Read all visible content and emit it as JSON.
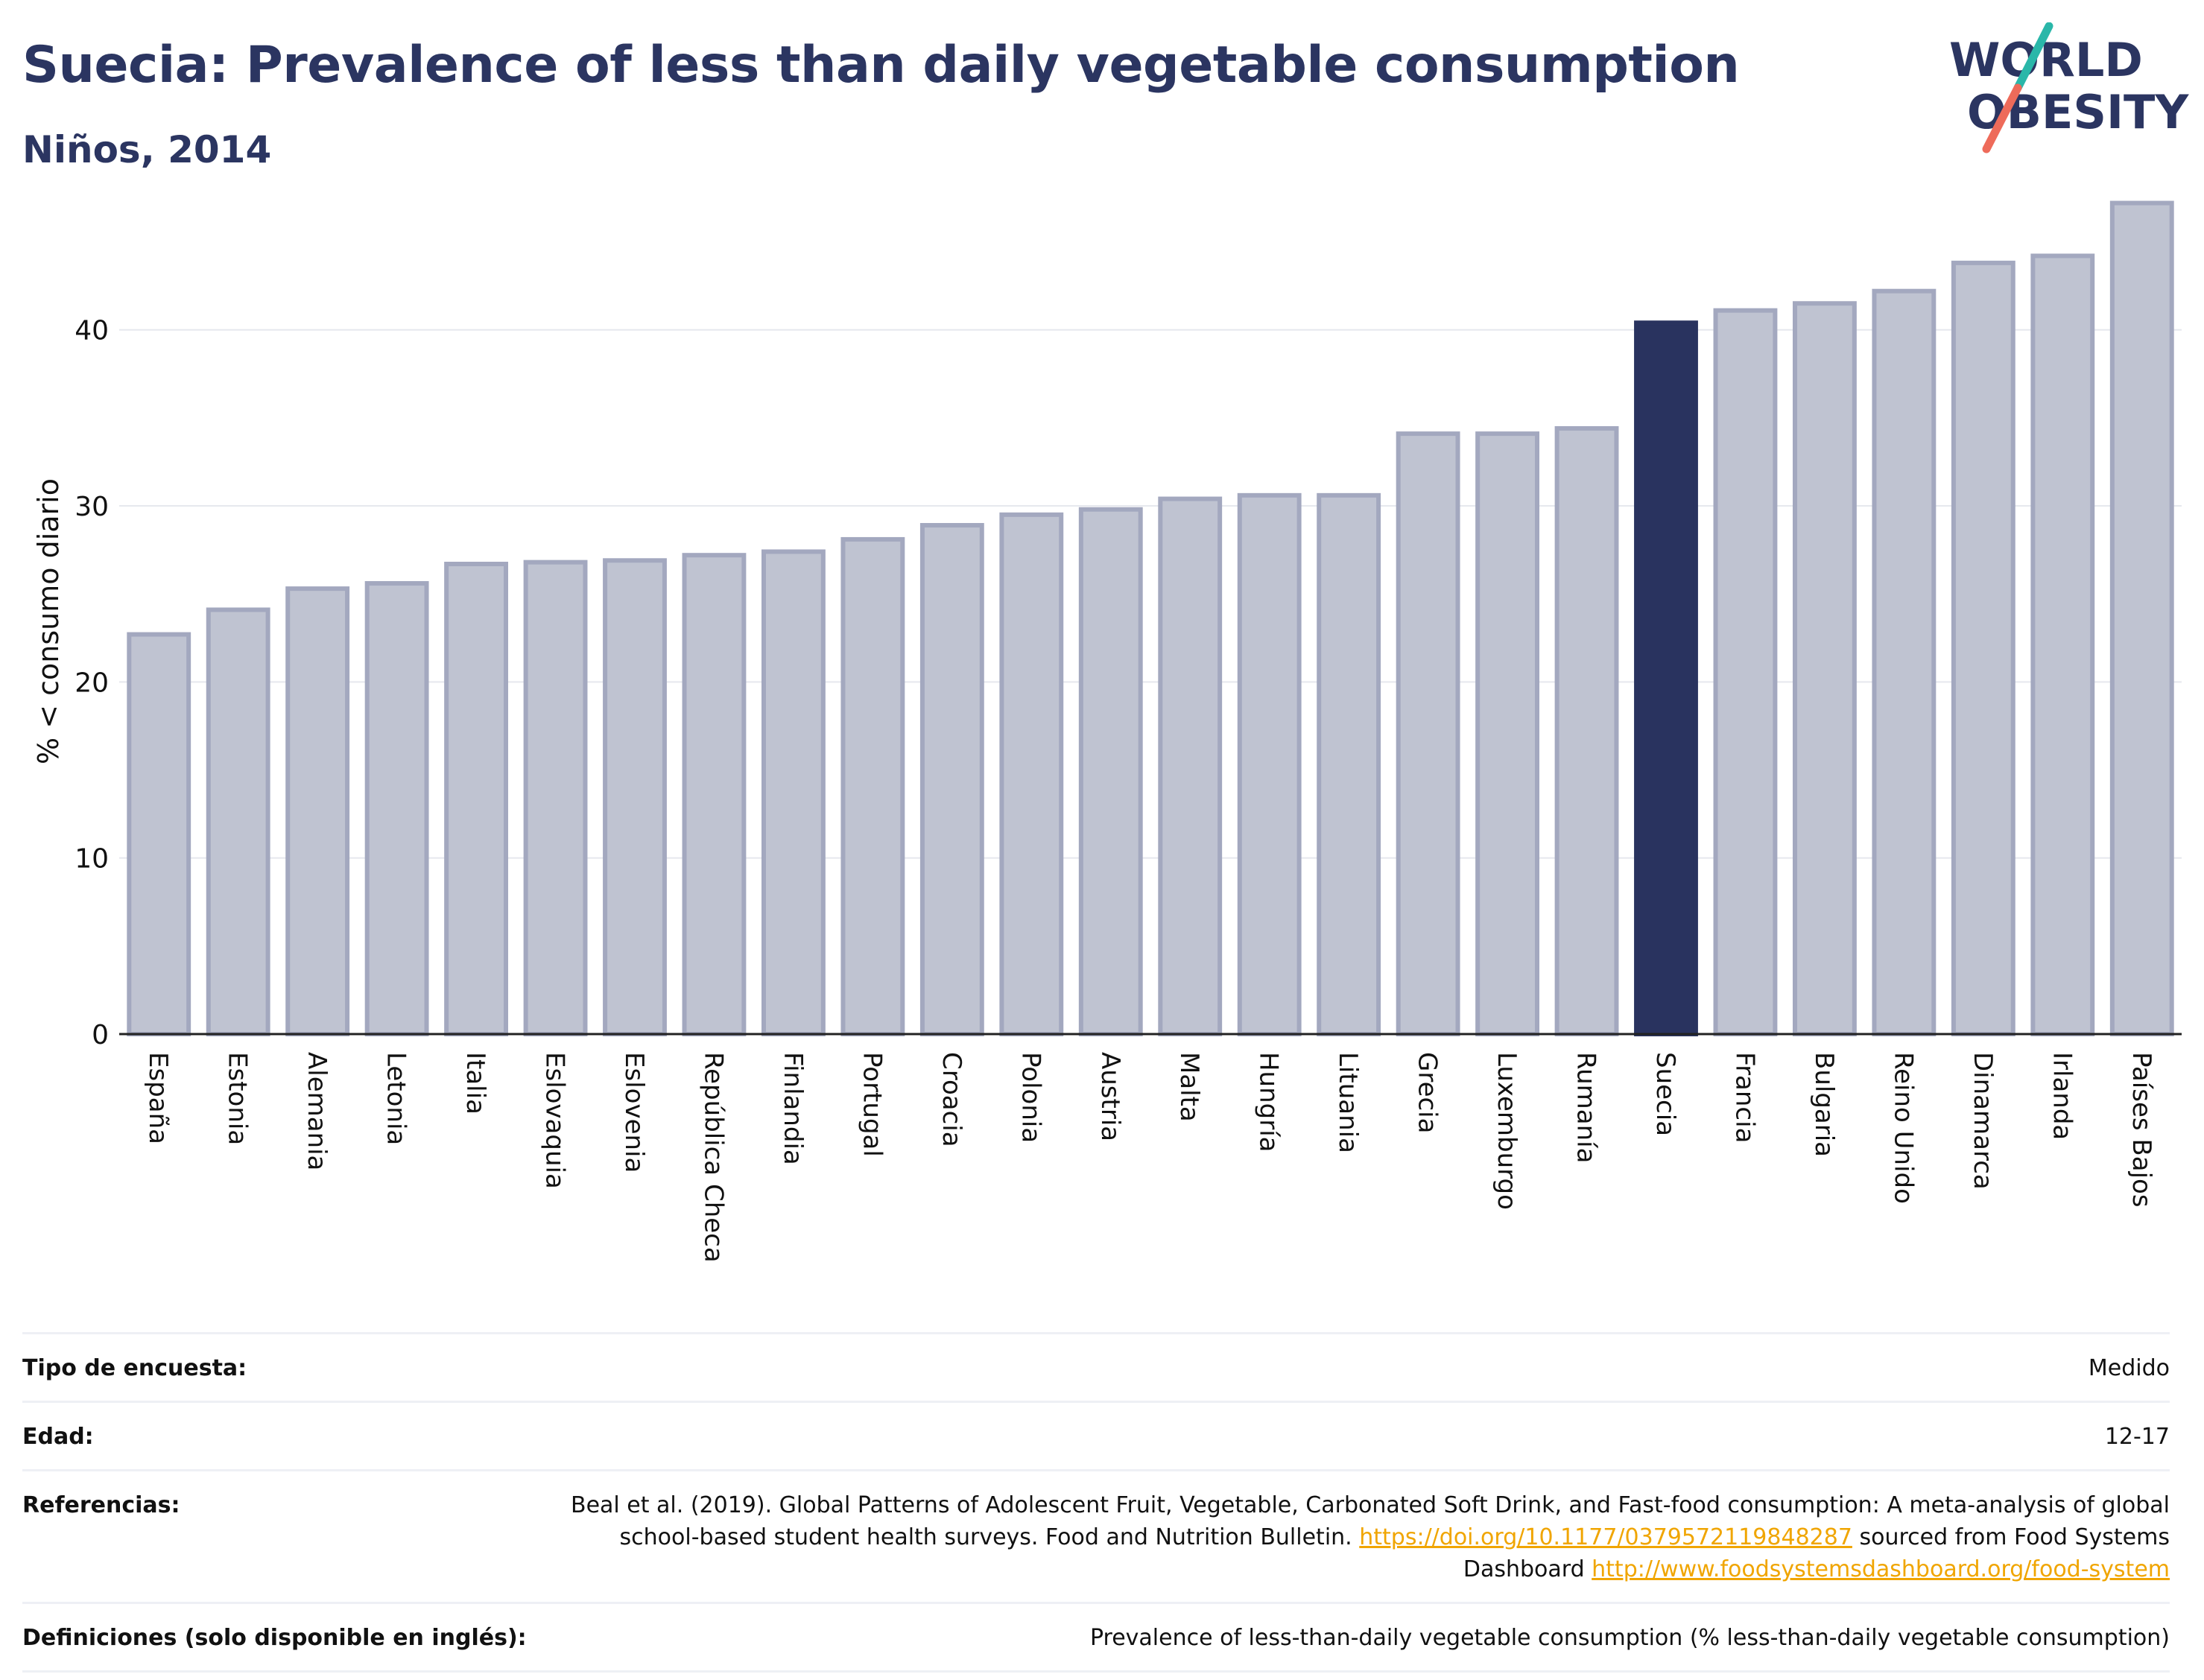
{
  "header": {
    "title": "Suecia: Prevalence of less than daily vegetable consumption",
    "subtitle": "Niños, 2014"
  },
  "logo": {
    "line1": "WORLD",
    "line2": "OBESITY"
  },
  "chart_data": {
    "type": "bar",
    "categories": [
      "España",
      "Estonia",
      "Alemania",
      "Letonia",
      "Italia",
      "Eslovaquia",
      "Eslovenia",
      "República Checa",
      "Finlandia",
      "Portugal",
      "Croacia",
      "Polonia",
      "Austria",
      "Malta",
      "Hungría",
      "Lituania",
      "Grecia",
      "Luxemburgo",
      "Rumanía",
      "Suecia",
      "Francia",
      "Bulgaria",
      "Reino Unido",
      "Dinamarca",
      "Irlanda",
      "Países Bajos"
    ],
    "values": [
      22.7,
      24.1,
      25.3,
      25.6,
      26.7,
      26.8,
      26.9,
      27.2,
      27.4,
      28.1,
      28.9,
      29.5,
      29.8,
      30.4,
      30.6,
      30.6,
      34.1,
      34.1,
      34.4,
      40.4,
      41.1,
      41.5,
      42.2,
      43.8,
      44.2,
      47.2
    ],
    "highlight": "Suecia",
    "ylabel": "% < consumo diario",
    "xlabel": "",
    "ylim": [
      0,
      49
    ],
    "yticks": [
      0,
      10,
      20,
      30,
      40
    ],
    "grid": true,
    "colors": {
      "bar": "#bfc3d1",
      "bar_border": "#a3a8bf",
      "highlight": "#29335f",
      "grid": "#e6e8ee",
      "axis": "#222222"
    }
  },
  "meta": [
    {
      "key": "Tipo de encuesta:",
      "value": "Medido"
    },
    {
      "key": "Edad:",
      "value": "12-17"
    },
    {
      "key": "Referencias:",
      "ref": {
        "text1": "Beal et al. (2019). Global Patterns of Adolescent Fruit, Vegetable, Carbonated Soft Drink, and Fast-food consumption: A meta-analysis of global school-based student health surveys. Food and Nutrition Bulletin. ",
        "link1": "https://doi.org/10.1177/0379572119848287",
        "text2": " sourced from Food Systems Dashboard ",
        "link2": "http://www.foodsystemsdashboard.org/food-system"
      }
    },
    {
      "key": "Definiciones (solo disponible en inglés):",
      "value": "Prevalence of less-than-daily vegetable consumption (% less-than-daily vegetable consumption)"
    }
  ]
}
